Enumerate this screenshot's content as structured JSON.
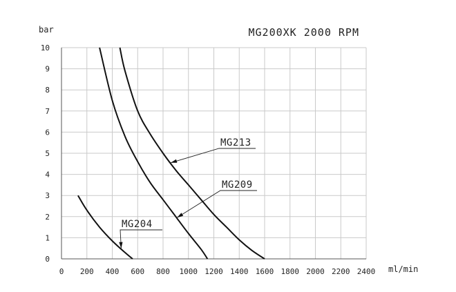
{
  "chart_data": {
    "type": "line",
    "title": "MG200XK  2000 RPM",
    "ylabel": "bar",
    "xlabel": "ml/min",
    "xlim": [
      0,
      2400
    ],
    "ylim": [
      0,
      10
    ],
    "x_ticks": [
      "0",
      "200",
      "400",
      "600",
      "800",
      "1000",
      "1200",
      "1400",
      "1600",
      "1800",
      "2000",
      "2200",
      "2400"
    ],
    "y_ticks": [
      "0",
      "1",
      "2",
      "3",
      "4",
      "5",
      "6",
      "7",
      "8",
      "9",
      "10"
    ],
    "grid": true,
    "series": [
      {
        "name": "MG204",
        "x": [
          130,
          200,
          300,
          400,
          500,
          560
        ],
        "y": [
          3.0,
          2.3,
          1.5,
          0.85,
          0.3,
          0.0
        ]
      },
      {
        "name": "MG209",
        "x": [
          300,
          400,
          500,
          600,
          700,
          800,
          900,
          1000,
          1100,
          1150
        ],
        "y": [
          10.0,
          7.5,
          5.8,
          4.6,
          3.6,
          2.8,
          2.0,
          1.2,
          0.45,
          0.0
        ]
      },
      {
        "name": "MG213",
        "x": [
          460,
          500,
          600,
          700,
          800,
          900,
          1000,
          1100,
          1200,
          1300,
          1400,
          1500,
          1600
        ],
        "y": [
          10.0,
          8.9,
          7.0,
          5.9,
          5.0,
          4.2,
          3.5,
          2.8,
          2.1,
          1.5,
          0.9,
          0.4,
          0.0
        ]
      }
    ]
  }
}
